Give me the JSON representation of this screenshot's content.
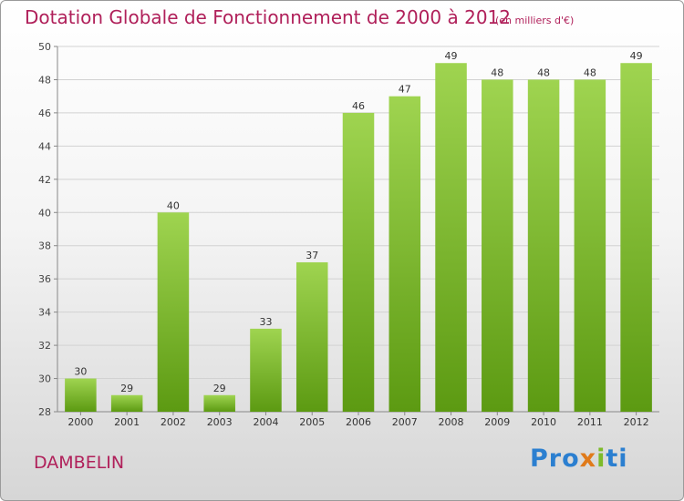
{
  "title": "Dotation Globale de Fonctionnement de 2000 à 2012",
  "unit": "(en milliers d'€)",
  "place": "DAMBELIN",
  "logo": [
    "Pro",
    "x",
    "i",
    "ti"
  ],
  "colors": {
    "accent": "#b0205a",
    "bar_light": "#9fd450",
    "bar_dark": "#5c9a12"
  },
  "chart_data": {
    "type": "bar",
    "categories": [
      "2000",
      "2001",
      "2002",
      "2003",
      "2004",
      "2005",
      "2006",
      "2007",
      "2008",
      "2009",
      "2010",
      "2011",
      "2012"
    ],
    "values": [
      30,
      29,
      40,
      29,
      33,
      37,
      46,
      47,
      49,
      48,
      48,
      48,
      49
    ],
    "ylim": [
      28,
      50
    ],
    "yticks": [
      28,
      30,
      32,
      34,
      36,
      38,
      40,
      42,
      44,
      46,
      48,
      50
    ],
    "grid": true
  }
}
